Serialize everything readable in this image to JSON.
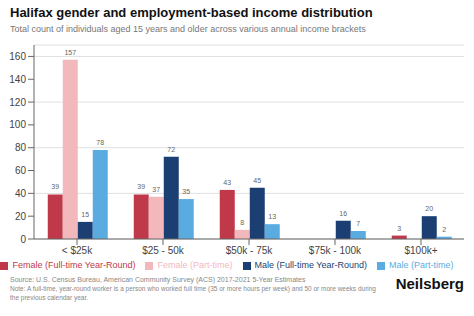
{
  "chart_data": {
    "type": "bar",
    "title": "Halifax gender and employment-based income distribution",
    "subtitle": "Total count of individuals aged 15 years and older across various annual income brackets",
    "categories": [
      "< $25k",
      "$25 - 50k",
      "$50k - 75k",
      "$75k - 100k",
      "$100k+"
    ],
    "series": [
      {
        "name": "Female (Full-time Year-Round)",
        "color": "#c0394b",
        "values": [
          39,
          39,
          43,
          0,
          3
        ]
      },
      {
        "name": "Female (Part-time)",
        "color": "#f2b8bc",
        "values": [
          157,
          37,
          8,
          0,
          0
        ]
      },
      {
        "name": "Male (Full-time Year-Round)",
        "color": "#1b3f72",
        "values": [
          15,
          72,
          45,
          16,
          20
        ]
      },
      {
        "name": "Male (Part-time)",
        "color": "#5aace0",
        "values": [
          78,
          35,
          13,
          7,
          2
        ]
      }
    ],
    "ylim": [
      0,
      170
    ],
    "yticks": [
      0,
      20,
      40,
      60,
      80,
      100,
      120,
      140,
      160
    ],
    "grid": true,
    "legend": "bottom",
    "data_labels": true,
    "annotations": [
      "Source: U.S. Census Bureau, American Community Survey (ACS) 2017-2021 5-Year Estimates",
      "Note: A full-time, year-round worker is a person who worked full time (35 or more hours per week) and 50 or more weeks during the previous calendar year.",
      "Neilsberg"
    ]
  }
}
